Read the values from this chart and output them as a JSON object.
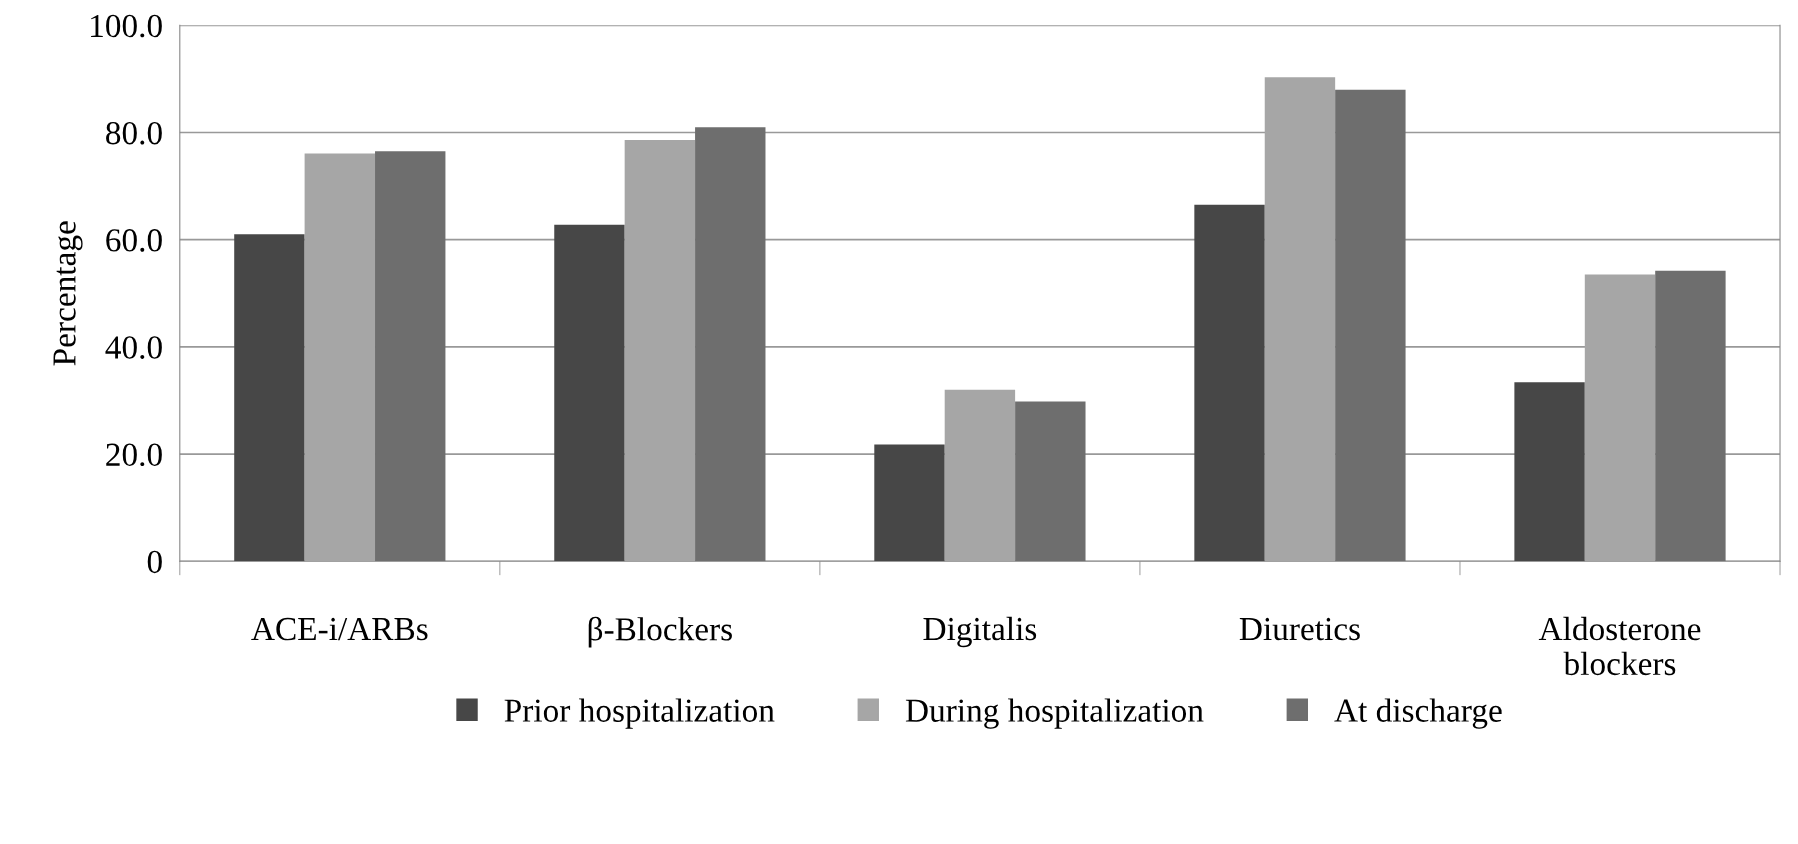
{
  "chart_data": {
    "type": "bar",
    "ylabel": "Percentage",
    "categories": [
      "ACE-i/ARBs",
      "β-Blockers",
      "Digitalis",
      "Diuretics",
      "Aldosterone\nblockers"
    ],
    "series": [
      {
        "name": "Prior hospitalization",
        "color": "#474747",
        "values": [
          61.0,
          62.8,
          21.8,
          66.5,
          33.4
        ]
      },
      {
        "name": "During hospitalization",
        "color": "#a6a6a6",
        "values": [
          76.1,
          78.6,
          32.0,
          90.3,
          53.5
        ]
      },
      {
        "name": "At discharge",
        "color": "#6e6e6e",
        "values": [
          76.5,
          81.0,
          29.8,
          88.0,
          54.2
        ]
      }
    ],
    "ylim": [
      0,
      100
    ],
    "yticks": [
      {
        "value": 0,
        "label": "0"
      },
      {
        "value": 20,
        "label": "20.0"
      },
      {
        "value": 40,
        "label": "40.0"
      },
      {
        "value": 60,
        "label": "60.0"
      },
      {
        "value": 80,
        "label": "80.0"
      },
      {
        "value": 100,
        "label": "100.0"
      }
    ],
    "grid": "y",
    "legend": "bottom"
  }
}
